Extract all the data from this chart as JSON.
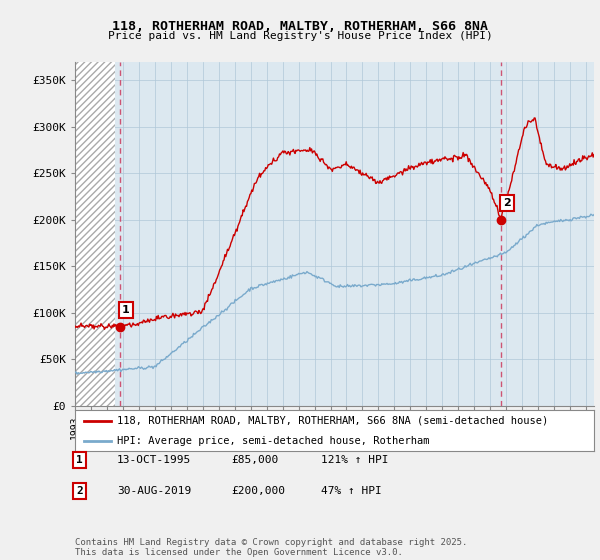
{
  "title": "118, ROTHERHAM ROAD, MALTBY, ROTHERHAM, S66 8NA",
  "subtitle": "Price paid vs. HM Land Registry's House Price Index (HPI)",
  "ylabel_ticks": [
    "£0",
    "£50K",
    "£100K",
    "£150K",
    "£200K",
    "£250K",
    "£300K",
    "£350K"
  ],
  "ytick_values": [
    0,
    50000,
    100000,
    150000,
    200000,
    250000,
    300000,
    350000
  ],
  "ylim": [
    0,
    370000
  ],
  "xlim_start": 1993.0,
  "xlim_end": 2025.5,
  "point1_x": 1995.79,
  "point1_y": 85000,
  "point1_label": "1",
  "point1_date": "13-OCT-1995",
  "point1_price": "£85,000",
  "point1_hpi": "121% ↑ HPI",
  "point2_x": 2019.66,
  "point2_y": 200000,
  "point2_label": "2",
  "point2_date": "30-AUG-2019",
  "point2_price": "£200,000",
  "point2_hpi": "47% ↑ HPI",
  "line_color_red": "#cc0000",
  "line_color_blue": "#7aaacc",
  "legend_label_red": "118, ROTHERHAM ROAD, MALTBY, ROTHERHAM, S66 8NA (semi-detached house)",
  "legend_label_blue": "HPI: Average price, semi-detached house, Rotherham",
  "footer": "Contains HM Land Registry data © Crown copyright and database right 2025.\nThis data is licensed under the Open Government Licence v3.0.",
  "background_color": "#f0f0f0",
  "plot_bg_color": "#dce8f0",
  "hatch_bg_color": "#ffffff",
  "grid_color": "#b0c8d8"
}
